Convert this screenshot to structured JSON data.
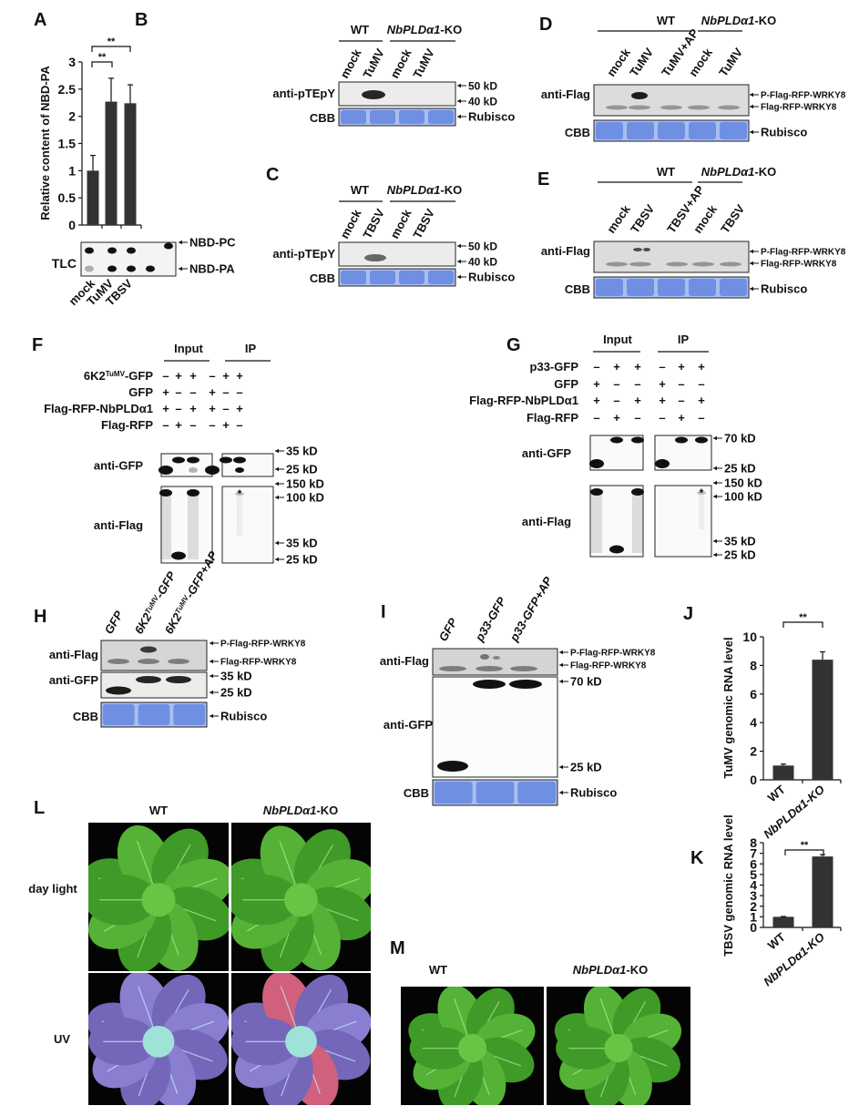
{
  "figure": {
    "marks": {
      "asterisk": "*"
    },
    "A": {
      "label": "A",
      "tlc_label": "TLC",
      "markers": [
        "NBD-PC",
        "NBD-PA"
      ]
    },
    "B": {
      "label": "B",
      "groups": {
        "wt": "WT",
        "ko_gene": "NbPLDα1",
        "ko_suffix": "-KO"
      },
      "lanes": [
        "mock",
        "TuMV",
        "mock",
        "TuMV"
      ],
      "rows": [
        "anti-pTEpY",
        "CBB"
      ],
      "markers": [
        "50 kD",
        "40 kD",
        "Rubisco"
      ]
    },
    "C": {
      "label": "C",
      "groups": {
        "wt": "WT",
        "ko_gene": "NbPLDα1",
        "ko_suffix": "-KO"
      },
      "lanes": [
        "mock",
        "TBSV",
        "mock",
        "TBSV"
      ],
      "rows": [
        "anti-pTEpY",
        "CBB"
      ],
      "markers": [
        "50 kD",
        "40 kD",
        "Rubisco"
      ]
    },
    "D": {
      "label": "D",
      "groups": {
        "wt": "WT",
        "ko_gene": "NbPLDα1",
        "ko_suffix": "-KO"
      },
      "lanes": [
        "mock",
        "TuMV",
        "TuMV+AP",
        "mock",
        "TuMV"
      ],
      "rows": [
        "anti-Flag",
        "CBB"
      ],
      "markers": [
        "P-Flag-RFP-WRKY8",
        "Flag-RFP-WRKY8",
        "Rubisco"
      ]
    },
    "E": {
      "label": "E",
      "groups": {
        "wt": "WT",
        "ko_gene": "NbPLDα1",
        "ko_suffix": "-KO"
      },
      "lanes": [
        "mock",
        "TBSV",
        "TBSV+AP",
        "mock",
        "TBSV"
      ],
      "rows": [
        "anti-Flag",
        "CBB"
      ],
      "markers": [
        "P-Flag-RFP-WRKY8",
        "Flag-RFP-WRKY8",
        "Rubisco"
      ]
    },
    "F": {
      "label": "F",
      "headers": [
        "Input",
        "IP"
      ],
      "conditions": [
        {
          "name": "6K2",
          "name_sup": "TuMV",
          "name_suffix": "-GFP",
          "signs": [
            "–",
            "+",
            "+",
            "–",
            "+",
            "+"
          ]
        },
        {
          "name": "GFP",
          "signs": [
            "+",
            "–",
            "–",
            "+",
            "–",
            "–"
          ]
        },
        {
          "name": "Flag-RFP-NbPLDα1",
          "signs": [
            "+",
            "–",
            "+",
            "+",
            "–",
            "+"
          ]
        },
        {
          "name": "Flag-RFP",
          "signs": [
            "–",
            "+",
            "–",
            "–",
            "+",
            "–"
          ]
        }
      ],
      "rows": [
        "anti-GFP",
        "anti-Flag"
      ],
      "markers": [
        "35 kD",
        "25 kD",
        "150 kD",
        "100 kD",
        "35 kD",
        "25 kD"
      ]
    },
    "G": {
      "label": "G",
      "headers": [
        "Input",
        "IP"
      ],
      "conditions": [
        {
          "name": "p33-GFP",
          "signs": [
            "–",
            "+",
            "+",
            "–",
            "+",
            "+"
          ]
        },
        {
          "name": "GFP",
          "signs": [
            "+",
            "–",
            "–",
            "+",
            "–",
            "–"
          ]
        },
        {
          "name": "Flag-RFP-NbPLDα1",
          "signs": [
            "+",
            "–",
            "+",
            "+",
            "–",
            "+"
          ]
        },
        {
          "name": "Flag-RFP",
          "signs": [
            "–",
            "+",
            "–",
            "–",
            "+",
            "–"
          ]
        }
      ],
      "rows": [
        "anti-GFP",
        "anti-Flag"
      ],
      "markers": [
        "70 kD",
        "25 kD",
        "150 kD",
        "100 kD",
        "35 kD",
        "25 kD"
      ]
    },
    "H": {
      "label": "H",
      "lanes": [
        {
          "name": "GFP"
        },
        {
          "name": "6K2",
          "sup": "TuMV",
          "suffix": "-GFP"
        },
        {
          "name": "6K2",
          "sup": "TuMV",
          "suffix": "-GFP+AP"
        }
      ],
      "rows": [
        "anti-Flag",
        "anti-GFP",
        "CBB"
      ],
      "markers": [
        "P-Flag-RFP-WRKY8",
        "Flag-RFP-WRKY8",
        "35 kD",
        "25 kD",
        "Rubisco"
      ]
    },
    "I": {
      "label": "I",
      "lanes": [
        "GFP",
        "p33-GFP",
        "p33-GFP+AP"
      ],
      "rows": [
        "anti-Flag",
        "anti-GFP",
        "CBB"
      ],
      "markers": [
        "P-Flag-RFP-WRKY8",
        "Flag-RFP-WRKY8",
        "70 kD",
        "25 kD",
        "Rubisco"
      ]
    },
    "J": {
      "label": "J"
    },
    "K": {
      "label": "K"
    },
    "L": {
      "label": "L",
      "columns": {
        "wt": "WT",
        "ko_gene": "NbPLDα1",
        "ko_suffix": "-KO"
      },
      "rows": [
        "day light",
        "UV"
      ]
    },
    "M": {
      "label": "M",
      "columns": {
        "wt": "WT",
        "ko_gene": "NbPLDα1",
        "ko_suffix": "-KO"
      }
    }
  },
  "colors": {
    "bar": "#333333",
    "cbb": "#6f8fe2",
    "band": "#111111",
    "asterisk": "#e0201b",
    "leaf": "#4fa832",
    "uv_leaf": "#8478c8"
  },
  "chart_data": [
    {
      "type": "bar",
      "panel": "A",
      "categories": [
        "mock",
        "TuMV",
        "TBSV"
      ],
      "values": [
        1.0,
        2.27,
        2.24
      ],
      "errors": [
        0.28,
        0.43,
        0.34
      ],
      "xlabel": "",
      "ylabel": "Relative content of NBD-PA",
      "ylim": [
        0,
        3
      ],
      "yticks": [
        "0",
        "0.5",
        "1",
        "1.5",
        "2",
        "2.5",
        "3"
      ],
      "significance": [
        {
          "pair": [
            "mock",
            "TuMV"
          ],
          "label": "**"
        },
        {
          "pair": [
            "mock",
            "TBSV"
          ],
          "label": "**"
        }
      ]
    },
    {
      "type": "bar",
      "panel": "J",
      "categories": [
        "WT",
        "NbPLDα1-KO"
      ],
      "values": [
        1.0,
        8.4
      ],
      "errors": [
        0.1,
        0.55
      ],
      "xlabel": "",
      "ylabel": "TuMV genomic RNA level",
      "ylim": [
        0,
        10
      ],
      "yticks": [
        "0",
        "2",
        "4",
        "6",
        "8",
        "10"
      ],
      "significance": [
        {
          "pair": [
            "WT",
            "NbPLDα1-KO"
          ],
          "label": "**"
        }
      ]
    },
    {
      "type": "bar",
      "panel": "K",
      "categories": [
        "WT",
        "NbPLDα1-KO"
      ],
      "values": [
        1.0,
        6.7
      ],
      "errors": [
        0.03,
        0.17
      ],
      "xlabel": "",
      "ylabel": "TBSV genomic RNA level",
      "ylim": [
        0,
        8
      ],
      "yticks": [
        "0",
        "1",
        "2",
        "3",
        "4",
        "5",
        "6",
        "7",
        "8"
      ],
      "significance": [
        {
          "pair": [
            "WT",
            "NbPLDα1-KO"
          ],
          "label": "**"
        }
      ]
    }
  ]
}
